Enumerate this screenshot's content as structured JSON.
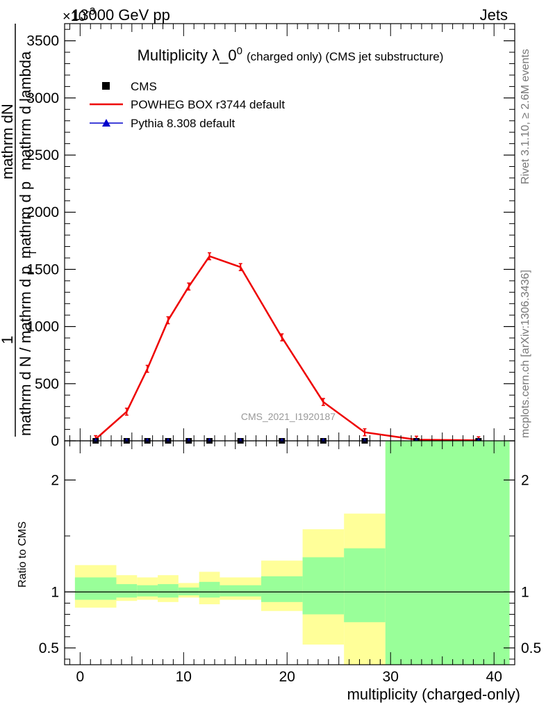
{
  "header": {
    "left": "13000 GeV pp",
    "right": "Jets",
    "exponent": "×10",
    "exponent_power": "-3"
  },
  "side_labels": {
    "rivet": "Rivet 3.1.10, ≥ 2.6M events",
    "mcplots": "mcplots.cern.ch [arXiv:1306.3436]"
  },
  "chart_data": [
    {
      "type": "line",
      "title": "Multiplicity λ_0",
      "title_superscript": "0",
      "title_suffix": "(charged only) (CMS jet substructure)",
      "watermark": "CMS_2021_I1920187",
      "ylabel_numerator": "1",
      "ylabel_numerator_line": "mathrm dN",
      "ylabel_denominator": "mathrm d N / mathrm d p",
      "ylabel_denominator_tail": "mathrm d p",
      "ylabel_sub": "T",
      "ylabel_tail": "mathrm d lambda",
      "xlim": [
        -1.5,
        42
      ],
      "ylim": [
        0,
        3650
      ],
      "ytick_values": [
        0,
        500,
        1000,
        1500,
        2000,
        2500,
        3000,
        3500
      ],
      "ytick_labels": [
        "0",
        "500",
        "1000",
        "1500",
        "2000",
        "2500",
        "3000",
        "3500"
      ],
      "legend": {
        "placement": "top-left",
        "entries": [
          "CMS",
          "POWHEG BOX r3744 default",
          "Pythia 8.308 default"
        ]
      },
      "series": [
        {
          "name": "CMS",
          "color": "#000000",
          "marker": "square",
          "x": [
            1.5,
            4.5,
            6.5,
            8.5,
            10.5,
            12.5,
            15.5,
            19.5,
            23.5,
            27.5,
            32.5,
            38.5
          ],
          "y": [
            0,
            0,
            0,
            0,
            0,
            0,
            0,
            0,
            0,
            0,
            0,
            0
          ]
        },
        {
          "name": "POWHEG BOX r3744 default",
          "color": "#ee0000",
          "marker": "line",
          "x": [
            1.5,
            4.5,
            6.5,
            8.5,
            10.5,
            12.5,
            15.5,
            19.5,
            23.5,
            27.5,
            32.5,
            38.5
          ],
          "y": [
            15,
            255,
            630,
            1055,
            1350,
            1615,
            1520,
            905,
            340,
            75,
            10,
            5
          ]
        },
        {
          "name": "Pythia 8.308 default",
          "color": "#0000cc",
          "marker": "triangle",
          "x": [
            1.5,
            4.5,
            6.5,
            8.5,
            10.5,
            12.5,
            15.5,
            19.5,
            23.5,
            27.5,
            32.5,
            38.5
          ],
          "y": [
            0,
            0,
            0,
            0,
            0,
            0,
            0,
            0,
            0,
            0,
            0,
            0
          ]
        }
      ]
    },
    {
      "type": "area",
      "ylabel": "Ratio to CMS",
      "xlabel": "multiplicity (charged-only)",
      "xlim": [
        -1.5,
        42
      ],
      "ylim": [
        0.35,
        2.35
      ],
      "xtick_values": [
        0,
        10,
        20,
        30,
        40
      ],
      "xtick_labels": [
        "0",
        "10",
        "20",
        "30",
        "40"
      ],
      "ytick_values": [
        0.5,
        1,
        2
      ],
      "ytick_labels": [
        "0.5",
        "1",
        "2"
      ],
      "reference_line": 1,
      "bands": {
        "edges": [
          -0.5,
          3.5,
          5.5,
          7.5,
          9.5,
          11.5,
          13.5,
          17.5,
          21.5,
          25.5,
          29.5,
          41.5
        ],
        "outer_color": "#ffff99",
        "inner_color": "#99ff99",
        "outer_low": [
          0.86,
          0.92,
          0.93,
          0.91,
          0.95,
          0.89,
          0.93,
          0.83,
          0.53,
          0.35,
          0.35
        ],
        "outer_high": [
          1.24,
          1.15,
          1.13,
          1.15,
          1.08,
          1.18,
          1.13,
          1.28,
          1.56,
          1.7,
          2.35
        ],
        "inner_low": [
          0.93,
          0.95,
          0.96,
          0.95,
          0.97,
          0.95,
          0.96,
          0.91,
          0.8,
          0.73,
          0.35
        ],
        "inner_high": [
          1.13,
          1.07,
          1.06,
          1.07,
          1.04,
          1.09,
          1.06,
          1.14,
          1.31,
          1.39,
          2.35
        ]
      }
    }
  ]
}
